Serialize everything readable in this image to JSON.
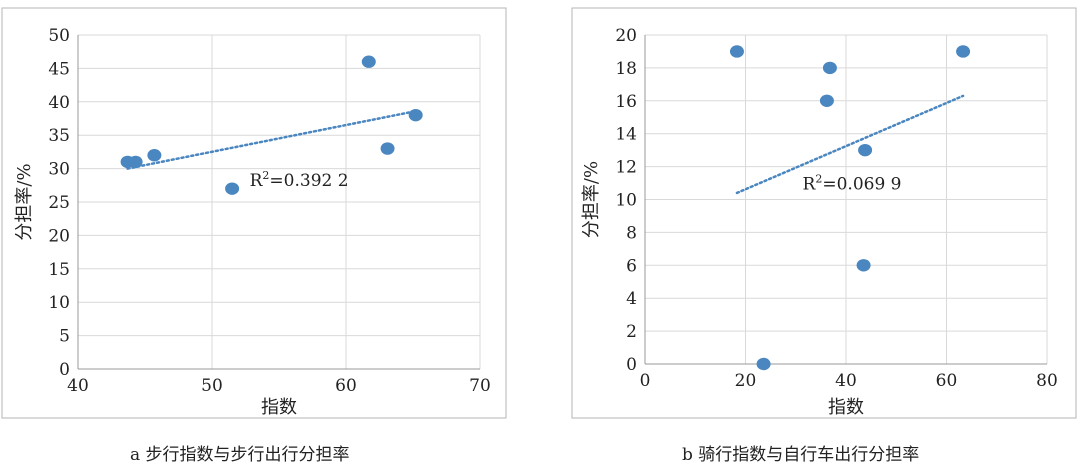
{
  "chart_data": [
    {
      "type": "scatter",
      "xlabel": "指数",
      "ylabel": "分担率/%",
      "xlim": [
        40,
        70
      ],
      "ylim": [
        0,
        50
      ],
      "xticks": [
        "40",
        "50",
        "60",
        "70"
      ],
      "yticks": [
        "0",
        "5",
        "10",
        "15",
        "20",
        "25",
        "30",
        "35",
        "40",
        "45",
        "50"
      ],
      "points": [
        {
          "x": 43.7,
          "y": 31
        },
        {
          "x": 44.3,
          "y": 31
        },
        {
          "x": 45.7,
          "y": 32
        },
        {
          "x": 51.5,
          "y": 27
        },
        {
          "x": 61.7,
          "y": 46
        },
        {
          "x": 63.1,
          "y": 33
        },
        {
          "x": 65.2,
          "y": 38
        }
      ],
      "trendline": {
        "x": [
          43.7,
          65.2
        ],
        "y": [
          30.0,
          38.6
        ]
      },
      "annotation": {
        "base": "R",
        "sup": "2",
        "rest": "=0.392 2",
        "x": 56.5,
        "y": 27.4
      },
      "caption": "a 步行指数与步行出行分担率",
      "grid": true,
      "marker_color": "#4a86c0"
    },
    {
      "type": "scatter",
      "xlabel": "指数",
      "ylabel": "分担率/%",
      "xlim": [
        0,
        80
      ],
      "ylim": [
        0,
        20
      ],
      "xticks": [
        "0",
        "20",
        "40",
        "60",
        "80"
      ],
      "yticks": [
        "0",
        "2",
        "4",
        "6",
        "8",
        "10",
        "12",
        "14",
        "16",
        "18",
        "20"
      ],
      "points": [
        {
          "x": 18.3,
          "y": 19
        },
        {
          "x": 23.6,
          "y": 0
        },
        {
          "x": 36.2,
          "y": 16
        },
        {
          "x": 36.8,
          "y": 18
        },
        {
          "x": 43.5,
          "y": 6
        },
        {
          "x": 43.8,
          "y": 13
        },
        {
          "x": 63.3,
          "y": 19
        }
      ],
      "trendline": {
        "x": [
          18.3,
          63.3
        ],
        "y": [
          10.4,
          16.3
        ]
      },
      "annotation": {
        "base": "R",
        "sup": "2",
        "rest": "=0.069 9",
        "x": 41.2,
        "y": 10.6
      },
      "caption": "b 骑行指数与自行车出行分担率",
      "grid": true,
      "marker_color": "#4a86c0"
    }
  ]
}
